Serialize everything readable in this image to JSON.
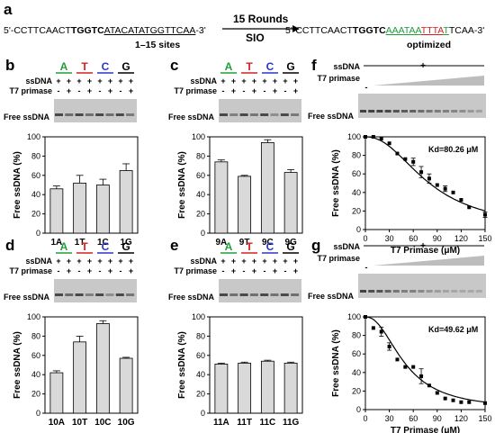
{
  "header": {
    "panel_label": "a",
    "seq_left": {
      "prefix": "5'-CCTTCAACT",
      "bold": "TGGTC",
      "underlined": "ATACATATGGTTCAA",
      "suffix": "-3'"
    },
    "sites_label": "1–15 sites",
    "arrow_top": "15 Rounds",
    "arrow_bottom": "SIO",
    "seq_right": {
      "prefix": "5'-CCTTCAACT",
      "bold": "TGGTC",
      "parts": [
        {
          "text": "AAA",
          "color": "green"
        },
        {
          "text": "TAA",
          "color": "green"
        },
        {
          "text": "TTTA",
          "color": "red"
        },
        {
          "text": "T",
          "color": "green"
        }
      ],
      "suffix": "TCAA-3'"
    },
    "optimized_label": "optimized"
  },
  "colors": {
    "A": "#1f9d3a",
    "T": "#d42020",
    "C": "#2a34c8",
    "G": "#000000",
    "bar_fill": "#d9d9d9",
    "gel_bg": "#c8c8c8"
  },
  "gel_labels": {
    "ssdna": "ssDNA",
    "primase": "T7 primase",
    "free": "Free ssDNA",
    "plus": "+",
    "minus": "-",
    "nucleotides": [
      "A",
      "T",
      "C",
      "G"
    ]
  },
  "chart_data": [
    {
      "panel": "b",
      "type": "bar",
      "categories": [
        "1A",
        "1T",
        "1C",
        "1G"
      ],
      "values": [
        46,
        52,
        50,
        65
      ],
      "errors": [
        3,
        8,
        6,
        7
      ],
      "ylabel": "Free ssDNA (%)",
      "ylim": [
        0,
        100
      ],
      "yticks": [
        0,
        20,
        40,
        60,
        80,
        100
      ]
    },
    {
      "panel": "c",
      "type": "bar",
      "categories": [
        "9A",
        "9T",
        "9C",
        "9G"
      ],
      "values": [
        74,
        59,
        94,
        63
      ],
      "errors": [
        2,
        1,
        3,
        3
      ],
      "ylabel": "Free ssDNA (%)",
      "ylim": [
        0,
        100
      ],
      "yticks": [
        0,
        20,
        40,
        60,
        80,
        100
      ]
    },
    {
      "panel": "d",
      "type": "bar",
      "categories": [
        "10A",
        "10T",
        "10C",
        "10G"
      ],
      "values": [
        42,
        74,
        93,
        57
      ],
      "errors": [
        2,
        6,
        3,
        1
      ],
      "ylabel": "Free ssDNA (%)",
      "ylim": [
        0,
        100
      ],
      "yticks": [
        0,
        20,
        40,
        60,
        80,
        100
      ]
    },
    {
      "panel": "e",
      "type": "bar",
      "categories": [
        "11A",
        "11T",
        "11C",
        "11G"
      ],
      "values": [
        51,
        52,
        54,
        52
      ],
      "errors": [
        1,
        1,
        1,
        1
      ],
      "ylabel": "Free ssDNA (%)",
      "ylim": [
        0,
        100
      ],
      "yticks": [
        0,
        20,
        40,
        60,
        80,
        100
      ]
    },
    {
      "panel": "f",
      "type": "scatter",
      "x": [
        0,
        10,
        20,
        30,
        40,
        50,
        60,
        70,
        80,
        90,
        100,
        110,
        120,
        130,
        150
      ],
      "y": [
        100,
        100,
        98,
        93,
        82,
        76,
        73,
        62,
        55,
        48,
        44,
        40,
        32,
        24,
        16
      ],
      "errors": [
        0,
        0,
        0,
        0,
        0,
        0,
        4,
        6,
        5,
        0,
        3,
        0,
        0,
        0,
        3
      ],
      "fit": {
        "model": "sigmoid",
        "kd": 80.26
      },
      "kd_label": "Kd=80.26 μM",
      "xlabel": "T7 Primase (μM)",
      "ylabel": "Free ssDNA (%)",
      "xlim": [
        0,
        150
      ],
      "ylim": [
        0,
        100
      ],
      "xticks": [
        0,
        30,
        60,
        90,
        120,
        150
      ],
      "yticks": [
        0,
        20,
        40,
        60,
        80,
        100
      ]
    },
    {
      "panel": "g",
      "type": "scatter",
      "x": [
        0,
        10,
        20,
        30,
        40,
        50,
        60,
        70,
        80,
        90,
        100,
        110,
        120,
        130,
        150
      ],
      "y": [
        100,
        88,
        84,
        68,
        54,
        46,
        46,
        36,
        26,
        18,
        12,
        10,
        8,
        8,
        7
      ],
      "errors": [
        0,
        0,
        5,
        4,
        0,
        0,
        0,
        8,
        0,
        0,
        0,
        0,
        0,
        0,
        0
      ],
      "fit": {
        "model": "sigmoid",
        "kd": 49.62
      },
      "kd_label": "Kd=49.62 μM",
      "xlabel": "T7 Primase (μM)",
      "ylabel": "Free ssDNA (%)",
      "xlim": [
        0,
        150
      ],
      "ylim": [
        0,
        100
      ],
      "xticks": [
        0,
        30,
        60,
        90,
        120,
        150
      ],
      "yticks": [
        0,
        20,
        40,
        60,
        80,
        100
      ]
    }
  ]
}
